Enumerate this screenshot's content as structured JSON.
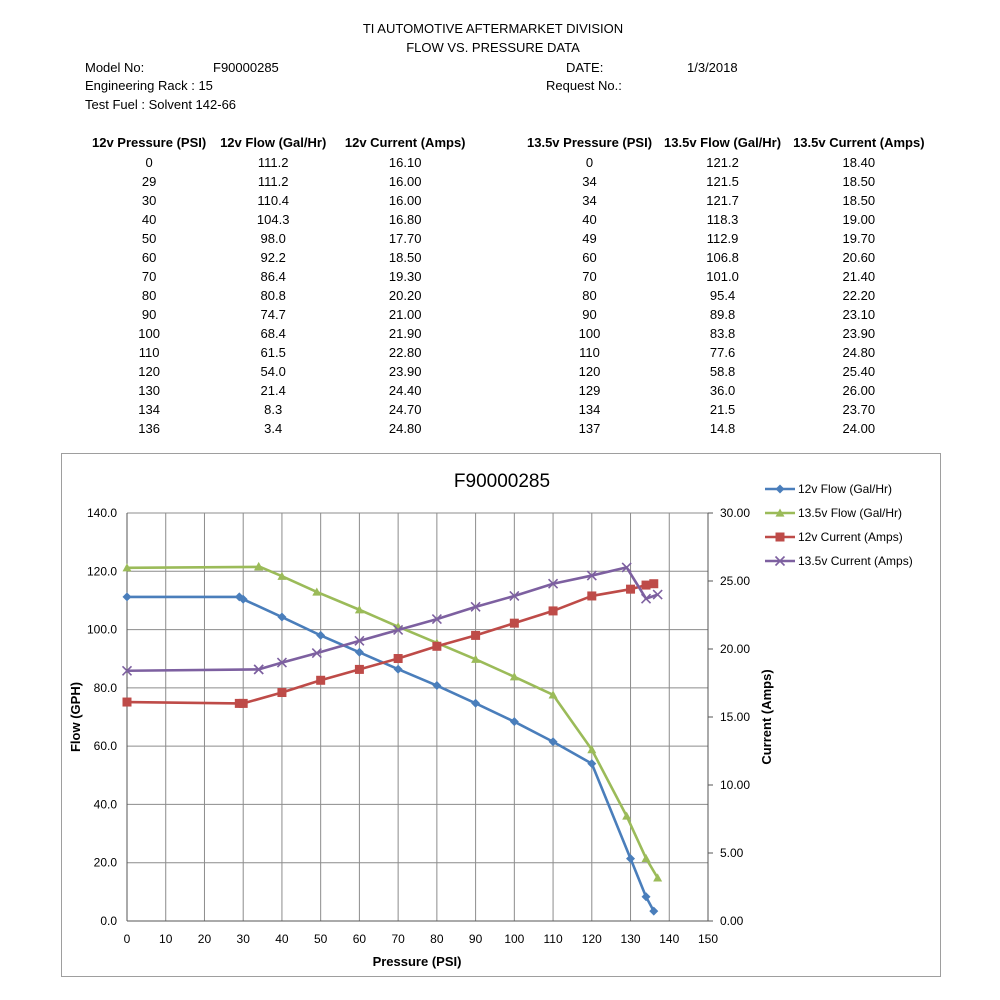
{
  "header": {
    "title_line1": "TI AUTOMOTIVE AFTERMARKET DIVISION",
    "title_line2": "FLOW  VS.  PRESSURE DATA",
    "model_label": "Model No:",
    "model_value": "F90000285",
    "rack": "Engineering Rack : 15",
    "fuel": "Test Fuel : Solvent 142-66",
    "date_label": "DATE:",
    "date_value": "1/3/2018",
    "request_label": "Request No.:"
  },
  "table12": {
    "headers": [
      "12v Pressure (PSI)",
      "12v Flow (Gal/Hr)",
      "12v Current (Amps)"
    ],
    "rows": [
      [
        "0",
        "111.2",
        "16.10"
      ],
      [
        "29",
        "111.2",
        "16.00"
      ],
      [
        "30",
        "110.4",
        "16.00"
      ],
      [
        "40",
        "104.3",
        "16.80"
      ],
      [
        "50",
        "98.0",
        "17.70"
      ],
      [
        "60",
        "92.2",
        "18.50"
      ],
      [
        "70",
        "86.4",
        "19.30"
      ],
      [
        "80",
        "80.8",
        "20.20"
      ],
      [
        "90",
        "74.7",
        "21.00"
      ],
      [
        "100",
        "68.4",
        "21.90"
      ],
      [
        "110",
        "61.5",
        "22.80"
      ],
      [
        "120",
        "54.0",
        "23.90"
      ],
      [
        "130",
        "21.4",
        "24.40"
      ],
      [
        "134",
        "8.3",
        "24.70"
      ],
      [
        "136",
        "3.4",
        "24.80"
      ]
    ]
  },
  "table135": {
    "headers": [
      "13.5v Pressure (PSI)",
      "13.5v Flow (Gal/Hr)",
      "13.5v Current (Amps)"
    ],
    "rows": [
      [
        "0",
        "121.2",
        "18.40"
      ],
      [
        "34",
        "121.5",
        "18.50"
      ],
      [
        "34",
        "121.7",
        "18.50"
      ],
      [
        "40",
        "118.3",
        "19.00"
      ],
      [
        "49",
        "112.9",
        "19.70"
      ],
      [
        "60",
        "106.8",
        "20.60"
      ],
      [
        "70",
        "101.0",
        "21.40"
      ],
      [
        "80",
        "95.4",
        "22.20"
      ],
      [
        "90",
        "89.8",
        "23.10"
      ],
      [
        "100",
        "83.8",
        "23.90"
      ],
      [
        "110",
        "77.6",
        "24.80"
      ],
      [
        "120",
        "58.8",
        "25.40"
      ],
      [
        "129",
        "36.0",
        "26.00"
      ],
      [
        "134",
        "21.5",
        "23.70"
      ],
      [
        "137",
        "14.8",
        "24.00"
      ]
    ]
  },
  "chart_data": {
    "type": "line",
    "title": "F90000285",
    "xlabel": "Pressure (PSI)",
    "ylabel": "Flow (GPH)",
    "y2label": "Current (Amps)",
    "xlim": [
      0,
      150
    ],
    "ylim": [
      0,
      140
    ],
    "y2lim": [
      0,
      30
    ],
    "xticks": [
      0,
      10,
      20,
      30,
      40,
      50,
      60,
      70,
      80,
      90,
      100,
      110,
      120,
      130,
      140,
      150
    ],
    "yticks": [
      "0.0",
      "20.0",
      "40.0",
      "60.0",
      "80.0",
      "100.0",
      "120.0",
      "140.0"
    ],
    "y2ticks": [
      "0.00",
      "5.00",
      "10.00",
      "15.00",
      "20.00",
      "25.00",
      "30.00"
    ],
    "grid": true,
    "legend_position": "right",
    "series": [
      {
        "name": "12v Flow (Gal/Hr)",
        "axis": "left",
        "color": "#4a7ebb",
        "marker": "diamond",
        "x": [
          0,
          29,
          30,
          40,
          50,
          60,
          70,
          80,
          90,
          100,
          110,
          120,
          130,
          134,
          136
        ],
        "y": [
          111.2,
          111.2,
          110.4,
          104.3,
          98.0,
          92.2,
          86.4,
          80.8,
          74.7,
          68.4,
          61.5,
          54.0,
          21.4,
          8.3,
          3.4
        ]
      },
      {
        "name": "13.5v Flow (Gal/Hr)",
        "axis": "left",
        "color": "#9bbb59",
        "marker": "triangle",
        "x": [
          0,
          34,
          34,
          40,
          49,
          60,
          70,
          80,
          90,
          100,
          110,
          120,
          129,
          134,
          137
        ],
        "y": [
          121.2,
          121.5,
          121.7,
          118.3,
          112.9,
          106.8,
          101.0,
          95.4,
          89.8,
          83.8,
          77.6,
          58.8,
          36.0,
          21.5,
          14.8
        ]
      },
      {
        "name": "12v Current (Amps)",
        "axis": "right",
        "color": "#be4b48",
        "marker": "square",
        "x": [
          0,
          29,
          30,
          40,
          50,
          60,
          70,
          80,
          90,
          100,
          110,
          120,
          130,
          134,
          136
        ],
        "y": [
          16.1,
          16.0,
          16.0,
          16.8,
          17.7,
          18.5,
          19.3,
          20.2,
          21.0,
          21.9,
          22.8,
          23.9,
          24.4,
          24.7,
          24.8
        ]
      },
      {
        "name": "13.5v Current (Amps)",
        "axis": "right",
        "color": "#7d60a0",
        "marker": "x",
        "x": [
          0,
          34,
          34,
          40,
          49,
          60,
          70,
          80,
          90,
          100,
          110,
          120,
          129,
          134,
          137
        ],
        "y": [
          18.4,
          18.5,
          18.5,
          19.0,
          19.7,
          20.6,
          21.4,
          22.2,
          23.1,
          23.9,
          24.8,
          25.4,
          26.0,
          23.7,
          24.0
        ]
      }
    ]
  }
}
